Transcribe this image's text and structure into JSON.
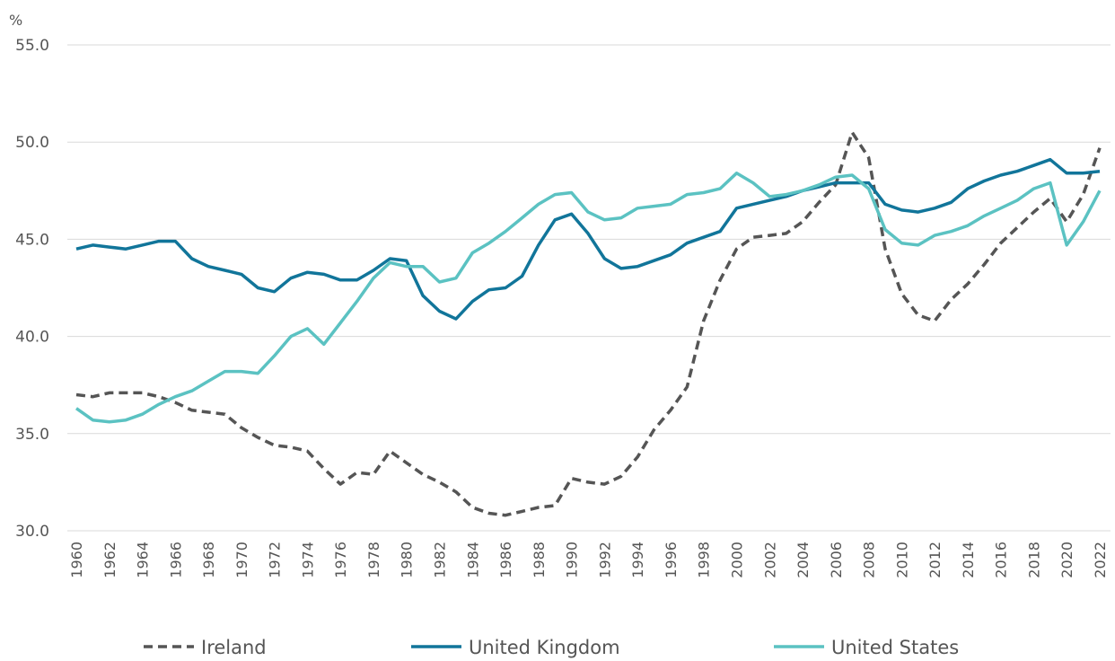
{
  "chart_data": {
    "type": "line",
    "y_unit": "%",
    "categories": [
      "1960",
      null,
      "1962",
      null,
      "1964",
      null,
      "1966",
      null,
      "1968",
      null,
      "1970",
      null,
      "1972",
      null,
      "1974",
      null,
      "1976",
      null,
      "1978",
      null,
      "1980",
      null,
      "1982",
      null,
      "1984",
      null,
      "1986",
      null,
      "1988",
      null,
      "1990",
      null,
      "1992",
      null,
      "1994",
      null,
      "1996",
      null,
      "1998",
      null,
      "2000",
      null,
      "2002",
      null,
      "2004",
      null,
      "2006",
      null,
      "2008",
      null,
      "2010",
      null,
      "2012",
      null,
      "2014",
      null,
      "2016",
      null,
      "2018",
      null,
      "2020",
      null,
      "2022"
    ],
    "series": [
      {
        "name": "Ireland",
        "color": "#555555",
        "dashed": true,
        "values": [
          37.0,
          36.9,
          37.1,
          37.1,
          37.1,
          36.9,
          36.6,
          36.2,
          36.1,
          36.0,
          35.3,
          34.8,
          34.4,
          34.3,
          34.1,
          33.2,
          32.4,
          33.0,
          32.9,
          34.1,
          33.5,
          32.9,
          32.5,
          32.0,
          31.2,
          30.9,
          30.8,
          31.0,
          31.2,
          31.3,
          32.7,
          32.5,
          32.4,
          32.8,
          33.8,
          35.2,
          36.2,
          37.4,
          40.8,
          42.9,
          44.5,
          45.1,
          45.2,
          45.3,
          45.9,
          46.9,
          47.8,
          50.5,
          49.2,
          44.5,
          42.2,
          41.1,
          40.8,
          41.9,
          42.7,
          43.7,
          44.8,
          45.6,
          46.4,
          47.1,
          45.9,
          47.3,
          49.7
        ]
      },
      {
        "name": "United Kingdom",
        "color": "#11759a",
        "dashed": false,
        "values": [
          44.5,
          44.7,
          44.6,
          44.5,
          44.7,
          44.9,
          44.9,
          44.0,
          43.6,
          43.4,
          43.2,
          42.5,
          42.3,
          43.0,
          43.3,
          43.2,
          42.9,
          42.9,
          43.4,
          44.0,
          43.9,
          42.1,
          41.3,
          40.9,
          41.8,
          42.4,
          42.5,
          43.1,
          44.7,
          46.0,
          46.3,
          45.3,
          44.0,
          43.5,
          43.6,
          43.9,
          44.2,
          44.8,
          45.1,
          45.4,
          46.6,
          46.8,
          47.0,
          47.2,
          47.5,
          47.7,
          47.9,
          47.9,
          47.9,
          46.8,
          46.5,
          46.4,
          46.6,
          46.9,
          47.6,
          48.0,
          48.3,
          48.5,
          48.8,
          49.1,
          48.4,
          48.4,
          48.5
        ]
      },
      {
        "name": "United States",
        "color": "#5bc2c2",
        "dashed": false,
        "values": [
          36.3,
          35.7,
          35.6,
          35.7,
          36.0,
          36.5,
          36.9,
          37.2,
          37.7,
          38.2,
          38.2,
          38.1,
          39.0,
          40.0,
          40.4,
          39.6,
          40.7,
          41.8,
          43.0,
          43.8,
          43.6,
          43.6,
          42.8,
          43.0,
          44.3,
          44.8,
          45.4,
          46.1,
          46.8,
          47.3,
          47.4,
          46.4,
          46.0,
          46.1,
          46.6,
          46.7,
          46.8,
          47.3,
          47.4,
          47.6,
          48.4,
          47.9,
          47.2,
          47.3,
          47.5,
          47.8,
          48.2,
          48.3,
          47.6,
          45.5,
          44.8,
          44.7,
          45.2,
          45.4,
          45.7,
          46.2,
          46.6,
          47.0,
          47.6,
          47.9,
          44.7,
          45.9,
          47.5
        ]
      }
    ],
    "ylim": [
      30,
      55
    ],
    "yticks": [
      {
        "value": 30,
        "label": "30.0"
      },
      {
        "value": 35,
        "label": "35.0"
      },
      {
        "value": 40,
        "label": "40.0"
      },
      {
        "value": 45,
        "label": "45.0"
      },
      {
        "value": 50,
        "label": "50.0"
      },
      {
        "value": 55,
        "label": "55.0"
      }
    ],
    "grid": true,
    "legend": "bottom"
  }
}
